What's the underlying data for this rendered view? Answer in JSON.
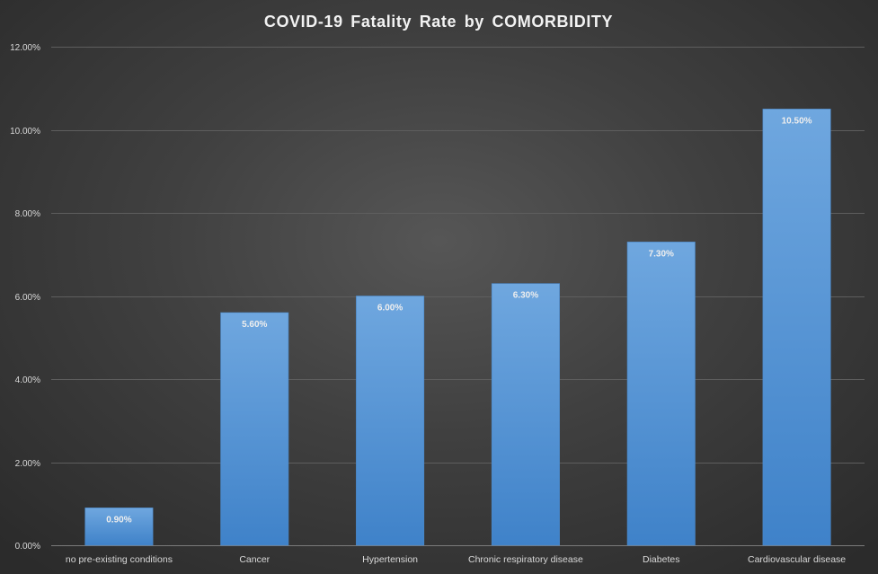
{
  "chart_data": {
    "type": "bar",
    "title": "COVID-19  Fatality  Rate  by  COMORBIDITY",
    "xlabel": "",
    "ylabel": "",
    "categories": [
      "no pre-existing conditions",
      "Cancer",
      "Hypertension",
      "Chronic respiratory disease",
      "Diabetes",
      "Cardiovascular disease"
    ],
    "values": [
      0.9,
      5.6,
      6.0,
      6.3,
      7.3,
      10.5
    ],
    "data_labels": [
      "0.90%",
      "5.60%",
      "6.00%",
      "6.30%",
      "7.30%",
      "10.50%"
    ],
    "ylim": [
      0,
      12
    ],
    "yticks": [
      0,
      2,
      4,
      6,
      8,
      10,
      12
    ],
    "ytick_labels": [
      "0.00%",
      "2.00%",
      "4.00%",
      "6.00%",
      "8.00%",
      "10.00%",
      "12.00%"
    ],
    "grid": true,
    "legend": "none",
    "colors": {
      "bar_top": "#6fa7df",
      "bar_bottom": "#3f82c9",
      "bar_edge": "#4a88c8"
    }
  }
}
